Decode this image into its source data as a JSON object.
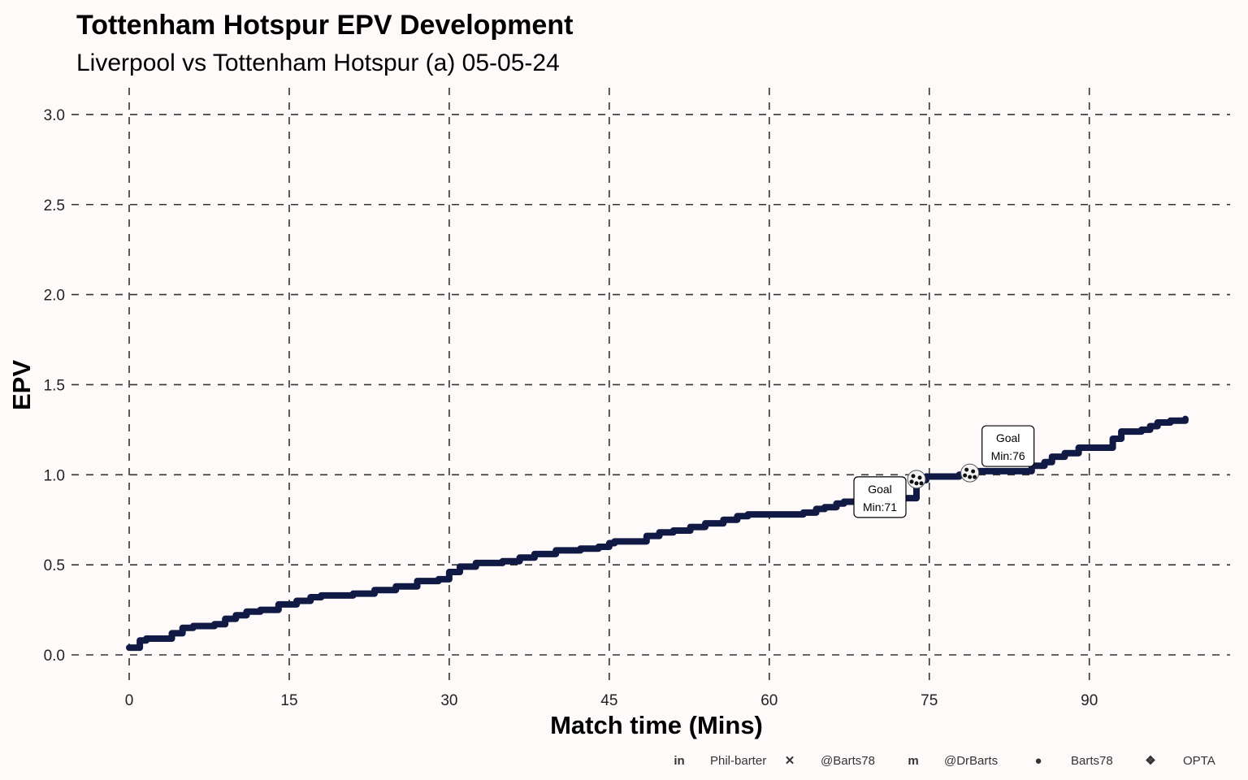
{
  "chart_data": {
    "type": "line",
    "title": "Tottenham Hotspur EPV Development",
    "subtitle": "Liverpool vs Tottenham Hotspur (a) 05-05-24",
    "xlabel": "Match time (Mins)",
    "ylabel": "EPV",
    "xlim": [
      -4.9,
      104.6
    ],
    "ylim": [
      0,
      3.0
    ],
    "x_ticks": [
      "0",
      "15",
      "30",
      "45",
      "60",
      "75",
      "90"
    ],
    "x_tick_values": [
      0,
      15,
      30,
      45,
      60,
      75,
      90
    ],
    "y_ticks": [
      "0.0",
      "0.5",
      "1.0",
      "1.5",
      "2.0",
      "2.5",
      "3.0"
    ],
    "y_tick_values": [
      0,
      0.5,
      1.0,
      1.5,
      2.0,
      2.5,
      3.0
    ],
    "grid": true,
    "line_color": "#111a45",
    "series": [
      {
        "name": "Tottenham Hotspur",
        "step": true,
        "x": [
          0,
          1,
          1.6,
          4,
          5,
          6,
          8,
          9,
          10,
          11,
          12.3,
          14,
          15.7,
          17,
          18,
          21,
          23,
          25,
          27,
          29,
          30,
          31,
          32.5,
          35,
          36.6,
          38,
          40,
          42.3,
          44,
          45,
          45.5,
          48.5,
          49.7,
          51,
          52.6,
          54,
          55.7,
          57,
          58,
          62.5,
          63.2,
          64.4,
          65.2,
          66.3,
          67,
          68.6,
          71,
          73.8,
          74.7,
          77.8,
          78.9,
          84.6,
          85.8,
          86.5,
          87.7,
          89,
          91.9,
          92.2,
          93,
          94.9,
          95.7,
          96.4,
          97.6,
          99
        ],
        "y": [
          0.04,
          0.08,
          0.09,
          0.12,
          0.15,
          0.16,
          0.17,
          0.2,
          0.22,
          0.24,
          0.25,
          0.28,
          0.3,
          0.32,
          0.33,
          0.34,
          0.36,
          0.38,
          0.41,
          0.42,
          0.46,
          0.49,
          0.51,
          0.52,
          0.54,
          0.56,
          0.58,
          0.59,
          0.6,
          0.62,
          0.63,
          0.66,
          0.68,
          0.69,
          0.71,
          0.73,
          0.75,
          0.77,
          0.78,
          0.78,
          0.79,
          0.81,
          0.82,
          0.84,
          0.85,
          0.85,
          0.87,
          0.97,
          0.99,
          1.0,
          1.02,
          1.05,
          1.07,
          1.1,
          1.12,
          1.15,
          1.15,
          1.2,
          1.24,
          1.25,
          1.27,
          1.29,
          1.3,
          1.31
        ]
      }
    ],
    "annotations": [
      {
        "type": "goal",
        "x": 73.8,
        "y": 0.975,
        "label_line1": "Goal",
        "label_line2": "Min:71"
      },
      {
        "type": "goal",
        "x": 78.8,
        "y": 1.01,
        "label_line1": "Goal",
        "label_line2": "Min:76"
      }
    ]
  },
  "footer": {
    "items": [
      {
        "icon": "linkedin-icon",
        "text": "Phil-barter"
      },
      {
        "icon": "x-twitter-icon",
        "text": "@Barts78"
      },
      {
        "icon": "mastodon-icon",
        "text": "@DrBarts"
      },
      {
        "icon": "github-icon",
        "text": "Barts78"
      },
      {
        "icon": "dropbox-icon",
        "text": "OPTA"
      }
    ]
  }
}
